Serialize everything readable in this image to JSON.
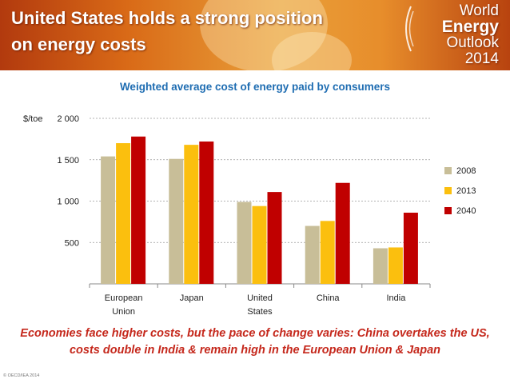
{
  "header": {
    "title_line1": "United States holds a strong position",
    "title_line2": "on energy costs",
    "brand_line1": "World",
    "brand_line2": "Energy",
    "brand_line3": "Outlook",
    "brand_line4": "2014"
  },
  "chart_data": {
    "type": "bar",
    "title": "Weighted average cost of energy paid by consumers",
    "ylabel": "$/toe",
    "ylim": [
      0,
      2000
    ],
    "yticks": [
      500,
      1000,
      1500,
      2000
    ],
    "ytick_labels": [
      "500",
      "1 000",
      "1 500",
      "2 000"
    ],
    "grid": true,
    "legend_position": "right",
    "categories": [
      [
        "European",
        "Union"
      ],
      [
        "Japan"
      ],
      [
        "United",
        "States"
      ],
      [
        "China"
      ],
      [
        "India"
      ]
    ],
    "series": [
      {
        "name": "2008",
        "color": "#c8be98",
        "values": [
          1540,
          1510,
          990,
          700,
          430
        ]
      },
      {
        "name": "2013",
        "color": "#fbbf0e",
        "values": [
          1700,
          1680,
          940,
          760,
          440
        ]
      },
      {
        "name": "2040",
        "color": "#c00000",
        "values": [
          1780,
          1720,
          1110,
          1220,
          860
        ]
      }
    ]
  },
  "footer": {
    "line1": "Economies face higher costs, but the pace of change varies: China overtakes the US,",
    "line2": "costs double in India & remain high in the European Union & Japan"
  },
  "copyright": "© OECD/IEA 2014",
  "colors": {
    "title_blue": "#1f6db2",
    "footer_red": "#c5281c"
  }
}
